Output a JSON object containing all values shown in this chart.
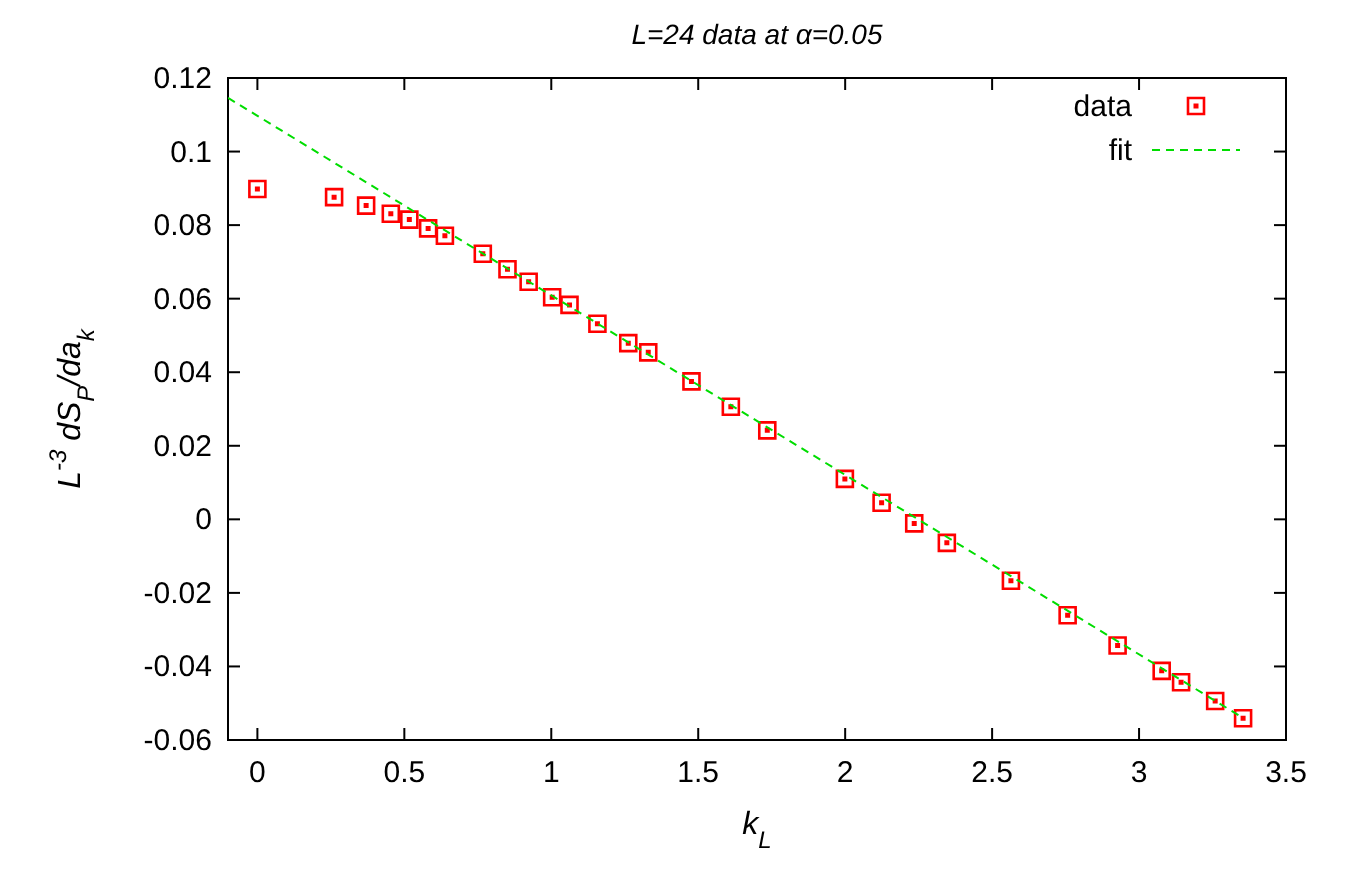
{
  "chart_data": {
    "type": "scatter",
    "title": "L=24 data at α=0.05",
    "xlabel": "k$_{L}$",
    "ylabel": "L$^{-3}$ dS$_{P}$/da$_{k}$",
    "xlim": [
      -0.1,
      3.5
    ],
    "xticks": [
      0,
      0.5,
      1,
      1.5,
      2,
      2.5,
      3,
      3.5
    ],
    "ylim": [
      -0.06,
      0.12
    ],
    "yticks": [
      -0.06,
      -0.04,
      -0.02,
      0,
      0.02,
      0.04,
      0.06,
      0.08,
      0.1,
      0.12
    ],
    "grid": false,
    "legend": "top right",
    "series": [
      {
        "name": "data",
        "marker": "square",
        "color": "#ff0000",
        "x": [
          0,
          0.261,
          0.37,
          0.454,
          0.517,
          0.581,
          0.638,
          0.767,
          0.851,
          0.923,
          1.003,
          1.062,
          1.157,
          1.262,
          1.33,
          1.477,
          1.611,
          1.735,
          1.999,
          2.124,
          2.235,
          2.346,
          2.564,
          2.757,
          2.927,
          3.077,
          3.143,
          3.259,
          3.354
        ],
        "values": [
          0.0898,
          0.0876,
          0.0853,
          0.0831,
          0.0815,
          0.0791,
          0.0771,
          0.0722,
          0.068,
          0.0646,
          0.0604,
          0.0583,
          0.0532,
          0.0479,
          0.0454,
          0.0375,
          0.0306,
          0.0242,
          0.011,
          0.0045,
          -0.0011,
          -0.0064,
          -0.0167,
          -0.0261,
          -0.0343,
          -0.0412,
          -0.0443,
          -0.0494,
          -0.0541
        ]
      },
      {
        "name": "fit",
        "type": "line",
        "line_style": "dashed",
        "color": "#00dd00",
        "x": [
          -0.1,
          3.354
        ],
        "values": [
          0.1146,
          -0.054
        ]
      }
    ]
  }
}
